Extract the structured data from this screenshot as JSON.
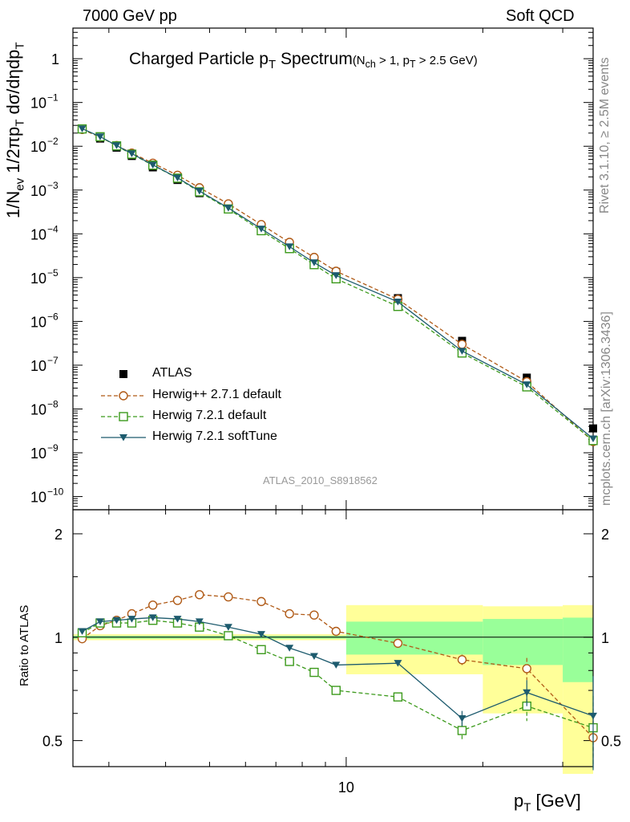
{
  "header": {
    "left": "7000 GeV pp",
    "right": "Soft QCD"
  },
  "side_labels": {
    "rivet": "Rivet 3.1.10, ≥ 2.5M events",
    "mcplots": "mcplots.cern.ch [arXiv:1306.3436]"
  },
  "watermark": "ATLAS_2010_S8918562",
  "chart_data": [
    {
      "type": "scatter",
      "title": "Charged Particle pT Spectrum",
      "title_parts": {
        "main": "Charged Particle p",
        "main_sub": "T",
        "main_after": " Spectrum",
        "cut_open": "(N",
        "cut_sub1": "ch",
        "cut_mid": " > 1, p",
        "cut_sub2": "T",
        "cut_close": " > 2.5 GeV)"
      },
      "ylabel": "1/Nev 1/2πpT dσ/dηdpT",
      "ylabel_parts": {
        "a": "1/N",
        "a_sub": "ev",
        "b": " 1/2πp",
        "b_sub": "T",
        "c": " dσ/dηdp",
        "c_sub": "T"
      },
      "yscale": "log",
      "ylim": [
        5e-11,
        5
      ],
      "xscale": "log",
      "xlim": [
        2.5,
        35
      ],
      "yticks": [
        {
          "value": 1e-10,
          "label": "10",
          "exp": "−10"
        },
        {
          "value": 1e-09,
          "label": "10",
          "exp": "−9"
        },
        {
          "value": 1e-08,
          "label": "10",
          "exp": "−8"
        },
        {
          "value": 1e-07,
          "label": "10",
          "exp": "−7"
        },
        {
          "value": 1e-06,
          "label": "10",
          "exp": "−6"
        },
        {
          "value": 1e-05,
          "label": "10",
          "exp": "−5"
        },
        {
          "value": 0.0001,
          "label": "10",
          "exp": "−4"
        },
        {
          "value": 0.001,
          "label": "10",
          "exp": "−3"
        },
        {
          "value": 0.01,
          "label": "10",
          "exp": "−2"
        },
        {
          "value": 0.1,
          "label": "10",
          "exp": "−1"
        },
        {
          "value": 1,
          "label": "1",
          "exp": ""
        }
      ],
      "x": [
        2.62,
        2.87,
        3.12,
        3.37,
        3.75,
        4.25,
        4.75,
        5.5,
        6.5,
        7.5,
        8.5,
        9.5,
        13.0,
        18.0,
        25.0,
        35.0
      ],
      "series": [
        {
          "name": "ATLAS",
          "color": "#000000",
          "marker": "square-filled",
          "values": [
            0.0245,
            0.015,
            0.0093,
            0.006,
            0.0033,
            0.0017,
            0.00085,
            0.00037,
            0.000128,
            5.5e-05,
            2.5e-05,
            1.35e-05,
            3.4e-06,
            3.6e-07,
            5.2e-08,
            3.6e-09
          ]
        },
        {
          "name": "Herwig++ 2.7.1 default",
          "color": "#b05a16",
          "marker": "circle-open",
          "dash": "5,3",
          "values": [
            0.0242,
            0.0162,
            0.0104,
            0.007,
            0.0041,
            0.00218,
            0.00113,
            0.000485,
            0.000163,
            6.4e-05,
            2.9e-05,
            1.4e-05,
            3.2e-06,
            3e-07,
            4.2e-08,
            1.8e-09
          ]
        },
        {
          "name": "Herwig 7.2.1 default",
          "color": "#3c9a1c",
          "marker": "square-open",
          "dash": "5,3",
          "values": [
            0.0249,
            0.0165,
            0.0102,
            0.0066,
            0.0037,
            0.00187,
            0.00091,
            0.00037,
            0.000118,
            4.6e-05,
            1.98e-05,
            9.4e-06,
            2.2e-06,
            1.9e-07,
            3.2e-08,
            1.9e-09
          ]
        },
        {
          "name": "Herwig 7.2.1 softTune",
          "color": "#1d5b6e",
          "marker": "triangle-down-filled",
          "values": [
            0.0252,
            0.0166,
            0.0104,
            0.0068,
            0.00375,
            0.0019,
            0.00095,
            0.00039,
            0.00013,
            5.1e-05,
            2.2e-05,
            1.12e-05,
            2.8e-06,
            2.1e-07,
            3.6e-08,
            2.1e-09
          ]
        }
      ],
      "legend": "lower-left"
    },
    {
      "type": "scatter",
      "ylabel": "Ratio to ATLAS",
      "xlabel": "pT [GeV]",
      "xlabel_parts": {
        "a": "p",
        "a_sub": "T",
        "b": "  [GeV]"
      },
      "xscale": "log",
      "xlim": [
        2.5,
        35
      ],
      "ylim": [
        0.42,
        2.35
      ],
      "yscale": "log",
      "yticks": [
        {
          "value": 0.5,
          "label": "0.5"
        },
        {
          "value": 1,
          "label": "1"
        },
        {
          "value": 2,
          "label": "2"
        }
      ],
      "xticks": [
        {
          "value": 10,
          "label": "10"
        }
      ],
      "reference_line": 1,
      "bands": [
        {
          "x0": 2.5,
          "x1": 10,
          "yellow": [
            0.98,
            1.02
          ],
          "green": [
            0.99,
            1.01
          ]
        },
        {
          "x0": 10,
          "x1": 20,
          "yellow": [
            0.78,
            1.24
          ],
          "green": [
            0.89,
            1.11
          ]
        },
        {
          "x0": 20,
          "x1": 30,
          "yellow": [
            0.6,
            1.23
          ],
          "green": [
            0.83,
            1.13
          ]
        },
        {
          "x0": 30,
          "x1": 40,
          "yellow": [
            0.4,
            1.24
          ],
          "green": [
            0.74,
            1.14
          ]
        }
      ],
      "x": [
        2.62,
        2.87,
        3.12,
        3.37,
        3.75,
        4.25,
        4.75,
        5.5,
        6.5,
        7.5,
        8.5,
        9.5,
        13.0,
        18.0,
        25.0,
        35.0
      ],
      "series": [
        {
          "name": "Herwig++ 2.7.1 default",
          "color": "#b05a16",
          "marker": "circle-open",
          "dash": "5,3",
          "values": [
            0.99,
            1.08,
            1.12,
            1.17,
            1.24,
            1.28,
            1.33,
            1.31,
            1.27,
            1.17,
            1.16,
            1.04,
            0.96,
            0.86,
            0.81,
            0.51
          ],
          "errors": [
            0,
            0,
            0,
            0,
            0,
            0,
            0,
            0,
            0,
            0,
            0,
            0,
            0,
            0.03,
            0.06,
            0.06
          ]
        },
        {
          "name": "Herwig 7.2.1 default",
          "color": "#3c9a1c",
          "marker": "square-open",
          "dash": "5,3",
          "values": [
            1.03,
            1.1,
            1.1,
            1.1,
            1.12,
            1.1,
            1.07,
            1.01,
            0.92,
            0.85,
            0.79,
            0.7,
            0.67,
            0.535,
            0.63,
            0.545
          ],
          "errors": [
            0,
            0,
            0,
            0,
            0,
            0,
            0,
            0,
            0,
            0,
            0,
            0,
            0,
            0.03,
            0.06,
            0.13
          ]
        },
        {
          "name": "Herwig 7.2.1 softTune",
          "color": "#1d5b6e",
          "marker": "triangle-down-filled",
          "values": [
            1.04,
            1.11,
            1.12,
            1.13,
            1.14,
            1.13,
            1.11,
            1.07,
            1.02,
            0.93,
            0.88,
            0.83,
            0.84,
            0.58,
            0.69,
            0.59
          ],
          "errors": [
            0,
            0,
            0,
            0,
            0,
            0,
            0,
            0,
            0,
            0,
            0,
            0,
            0,
            0.03,
            0.06,
            0.18
          ]
        }
      ]
    }
  ]
}
